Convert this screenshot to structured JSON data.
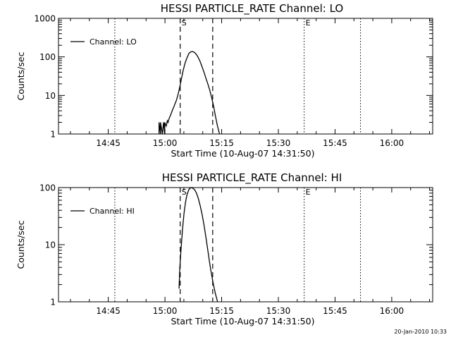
{
  "footer_timestamp": "20-Jan-2010 10:33",
  "chart_data": [
    {
      "type": "line",
      "title": "HESSI PARTICLE_RATE Channel: LO",
      "xlabel": "Start Time (10-Aug-07 14:31:50)",
      "ylabel": "Counts/sec",
      "yscale": "log",
      "ylim": [
        1,
        1000
      ],
      "y_ticks": [
        1,
        10,
        100,
        1000
      ],
      "y_tick_labels": [
        "1",
        "10",
        "100",
        "1000"
      ],
      "x_unit": "minutes since 14:31:50",
      "xlim": [
        0,
        99
      ],
      "x_ticks": [
        13.17,
        28.17,
        43.17,
        58.17,
        73.17,
        88.17
      ],
      "x_tick_labels": [
        "14:45",
        "15:00",
        "15:15",
        "15:30",
        "15:45",
        "16:00"
      ],
      "legend": {
        "label": "Channel: LO",
        "position": "top-left"
      },
      "dashed_lines": [
        {
          "x": 32.2,
          "label": "S"
        },
        {
          "x": 40.8,
          "label": ""
        }
      ],
      "dotted_lines": [
        {
          "x": 14.9,
          "label": ""
        },
        {
          "x": 65.0,
          "label": "E"
        },
        {
          "x": 79.9,
          "label": ""
        }
      ],
      "series": [
        {
          "name": "Channel: LO",
          "x": [
            26.6,
            26.6,
            27.0,
            27.0,
            27.5,
            27.8,
            28.1,
            28.1,
            28.5,
            28.8,
            29.0,
            29.3,
            29.6,
            29.9,
            30.2,
            30.5,
            30.8,
            31.1,
            31.5,
            32.0,
            32.5,
            33.0,
            33.5,
            34.0,
            34.5,
            35.0,
            35.5,
            36.0,
            36.5,
            37.0,
            37.5,
            38.0,
            38.5,
            39.0,
            39.5,
            40.0,
            40.5,
            41.0,
            41.5,
            42.0,
            42.6
          ],
          "y": [
            1,
            2,
            1,
            2,
            1,
            2,
            1,
            2,
            1.6,
            2.2,
            2.0,
            2.6,
            3.0,
            3.6,
            4.3,
            5.0,
            6.0,
            7.0,
            9.5,
            15,
            26,
            45,
            70,
            95,
            122,
            135,
            138,
            130,
            115,
            95,
            75,
            55,
            40,
            28,
            20,
            14,
            9,
            5.5,
            3,
            1.7,
            1
          ]
        }
      ]
    },
    {
      "type": "line",
      "title": "HESSI PARTICLE_RATE Channel: HI",
      "xlabel": "Start Time (10-Aug-07 14:31:50)",
      "ylabel": "Counts/sec",
      "yscale": "log",
      "ylim": [
        1,
        100
      ],
      "y_ticks": [
        1,
        10,
        100
      ],
      "y_tick_labels": [
        "1",
        "10",
        "100"
      ],
      "x_unit": "minutes since 14:31:50",
      "xlim": [
        0,
        99
      ],
      "x_ticks": [
        13.17,
        28.17,
        43.17,
        58.17,
        73.17,
        88.17
      ],
      "x_tick_labels": [
        "14:45",
        "15:00",
        "15:15",
        "15:30",
        "15:45",
        "16:00"
      ],
      "legend": {
        "label": "Channel: HI",
        "position": "top-left"
      },
      "dashed_lines": [
        {
          "x": 32.2,
          "label": "S"
        },
        {
          "x": 40.8,
          "label": ""
        }
      ],
      "dotted_lines": [
        {
          "x": 14.9,
          "label": ""
        },
        {
          "x": 65.0,
          "label": "E"
        },
        {
          "x": 79.9,
          "label": ""
        }
      ],
      "series": [
        {
          "name": "Channel: HI",
          "x": [
            31.9,
            32.1,
            32.4,
            32.8,
            33.2,
            33.6,
            34.0,
            34.5,
            35.0,
            35.5,
            36.0,
            36.5,
            37.0,
            37.5,
            38.0,
            38.5,
            39.0,
            39.5,
            40.0,
            40.5,
            41.0,
            41.5,
            42.0,
            42.1
          ],
          "y": [
            1.7,
            4,
            8,
            18,
            35,
            55,
            75,
            92,
            100,
            98,
            92,
            80,
            64,
            48,
            34,
            22,
            13.5,
            8,
            4.8,
            3,
            2,
            1.4,
            1.05,
            1
          ]
        }
      ]
    }
  ]
}
